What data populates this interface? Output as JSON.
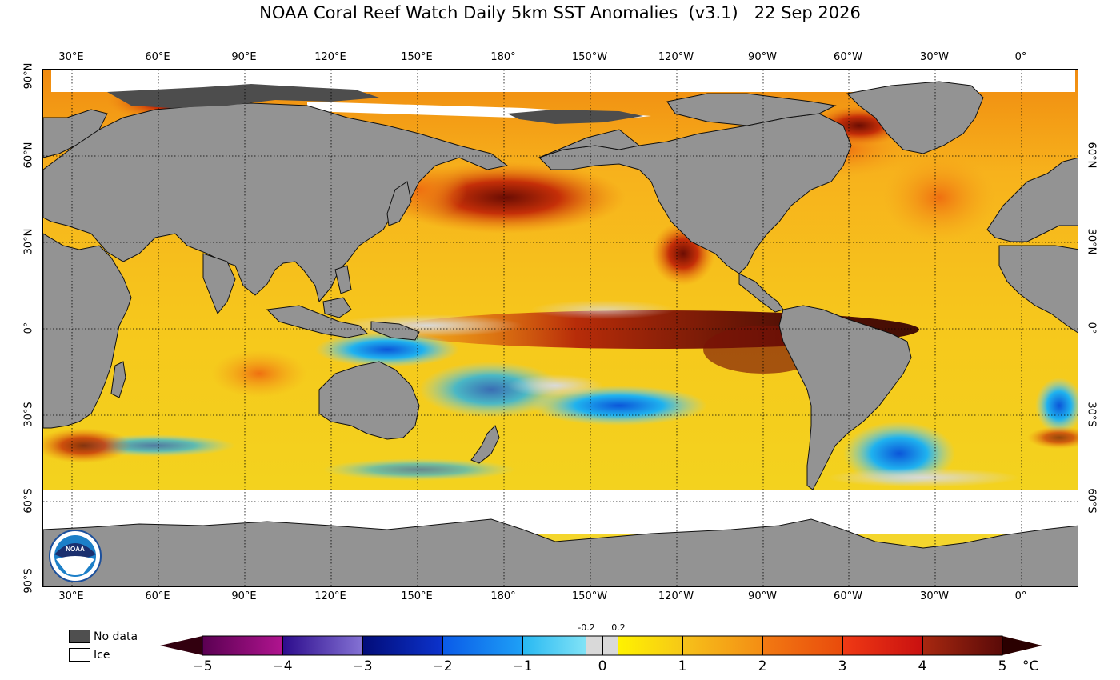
{
  "title": "NOAA Coral Reef Watch Daily 5km SST Anomalies  (v3.1)   22 Sep 2026",
  "lon_labels": [
    "30°E",
    "60°E",
    "90°E",
    "120°E",
    "150°E",
    "180°",
    "150°W",
    "120°W",
    "90°W",
    "60°W",
    "30°W",
    "0°"
  ],
  "lat_labels_left": [
    "90°N",
    "60°N",
    "30°N",
    "0°",
    "30°S",
    "60°S",
    "90°S"
  ],
  "lat_labels_right": [
    "60°N",
    "30°N",
    "0°",
    "30°S",
    "60°S"
  ],
  "legend": {
    "no_data": "No data",
    "ice": "Ice"
  },
  "colorbar": {
    "ticks": [
      "−5",
      "−4",
      "−3",
      "−2",
      "−1",
      "0",
      "1",
      "2",
      "3",
      "4",
      "5"
    ],
    "small_ticks": [
      "-0.2",
      "0.2"
    ],
    "unit": "°C"
  },
  "colors": {
    "land": "#929292",
    "no_data": "#4f4f4f",
    "ice": "#ffffff",
    "warm": "#f5c518",
    "hot": "#e8620e",
    "very_hot": "#5a0a02",
    "cool": "#1ea7ee",
    "neutral": "#d8d8d8"
  }
}
